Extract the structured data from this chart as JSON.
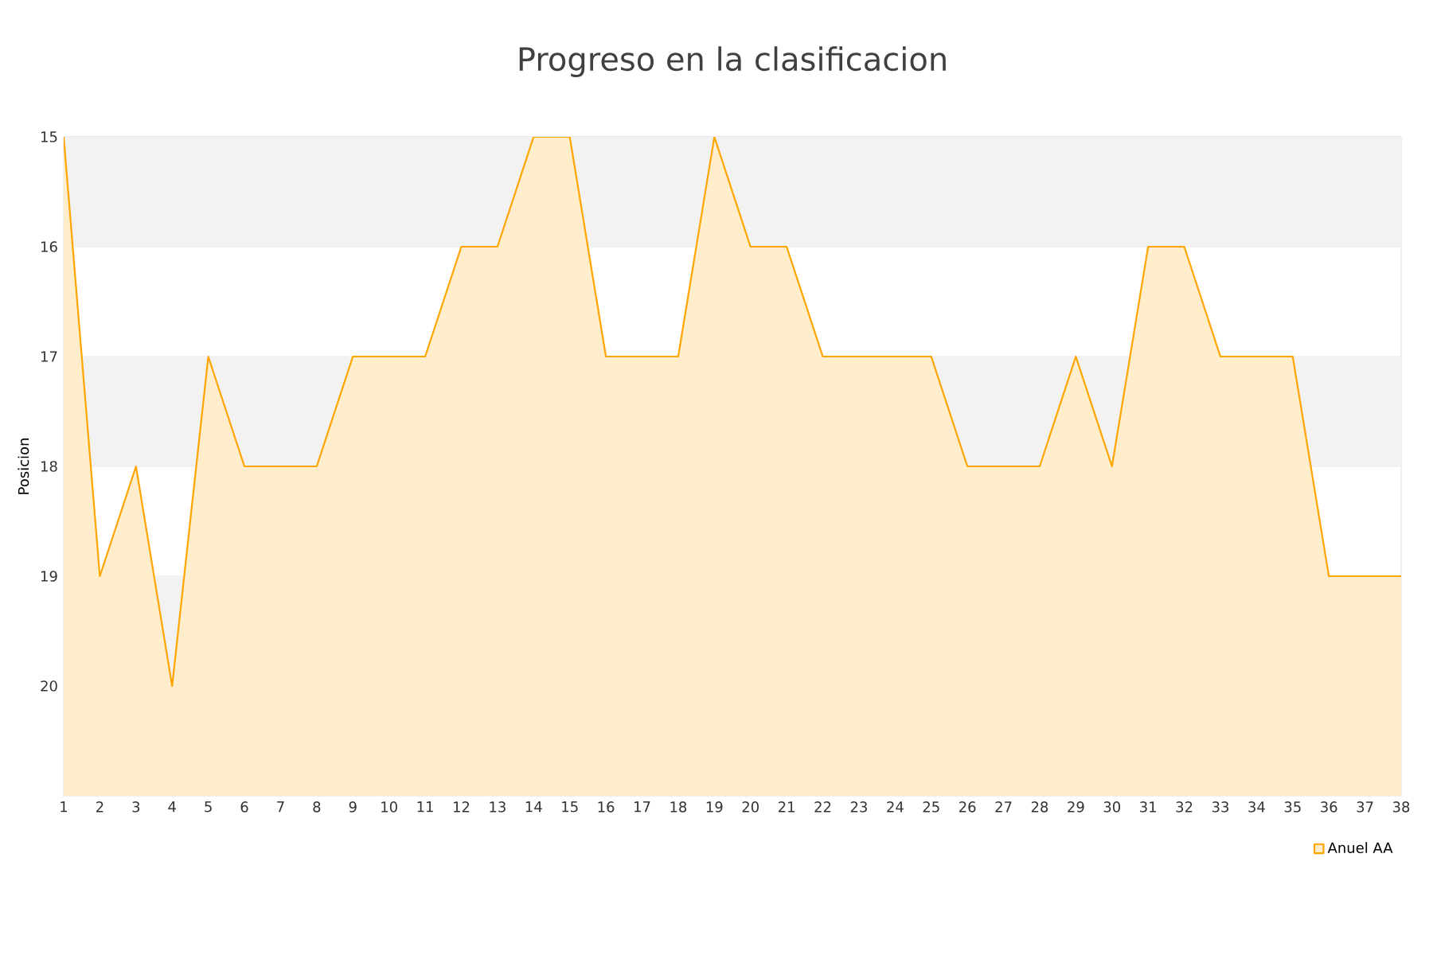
{
  "chart_data": {
    "type": "area",
    "title": "Progreso en la clasificacion",
    "ylabel": "Posicion",
    "x": [
      1,
      2,
      3,
      4,
      5,
      6,
      7,
      8,
      9,
      10,
      11,
      12,
      13,
      14,
      15,
      16,
      17,
      18,
      19,
      20,
      21,
      22,
      23,
      24,
      25,
      26,
      27,
      28,
      29,
      30,
      31,
      32,
      33,
      34,
      35,
      36,
      37,
      38
    ],
    "series": [
      {
        "name": "Anuel AA",
        "color": "#ffa500",
        "values": [
          15,
          19,
          18,
          20,
          17,
          18,
          18,
          18,
          17,
          17,
          17,
          16,
          16,
          15,
          15,
          17,
          17,
          17,
          15,
          16,
          16,
          17,
          17,
          17,
          17,
          18,
          18,
          18,
          17,
          18,
          16,
          16,
          17,
          17,
          17,
          19,
          19,
          19
        ]
      }
    ],
    "xlim": [
      1,
      38
    ],
    "xticks": [
      1,
      2,
      3,
      4,
      5,
      6,
      7,
      8,
      9,
      10,
      11,
      12,
      13,
      14,
      15,
      16,
      17,
      18,
      19,
      20,
      21,
      22,
      23,
      24,
      25,
      26,
      27,
      28,
      29,
      30,
      31,
      32,
      33,
      34,
      35,
      36,
      37,
      38
    ],
    "ylim": [
      21,
      15
    ],
    "yticks": [
      15,
      16,
      17,
      18,
      19,
      20
    ],
    "bands": [
      {
        "axis": "y",
        "from": 15,
        "to": 16,
        "color": "#f2f2f2"
      },
      {
        "axis": "y",
        "from": 17,
        "to": 18,
        "color": "#f2f2f2"
      },
      {
        "axis": "y",
        "from": 19,
        "to": 20,
        "color": "#f2f2f2"
      }
    ],
    "grid": "y",
    "legend": "bottom right",
    "marker": "none",
    "line_style": "solid"
  }
}
